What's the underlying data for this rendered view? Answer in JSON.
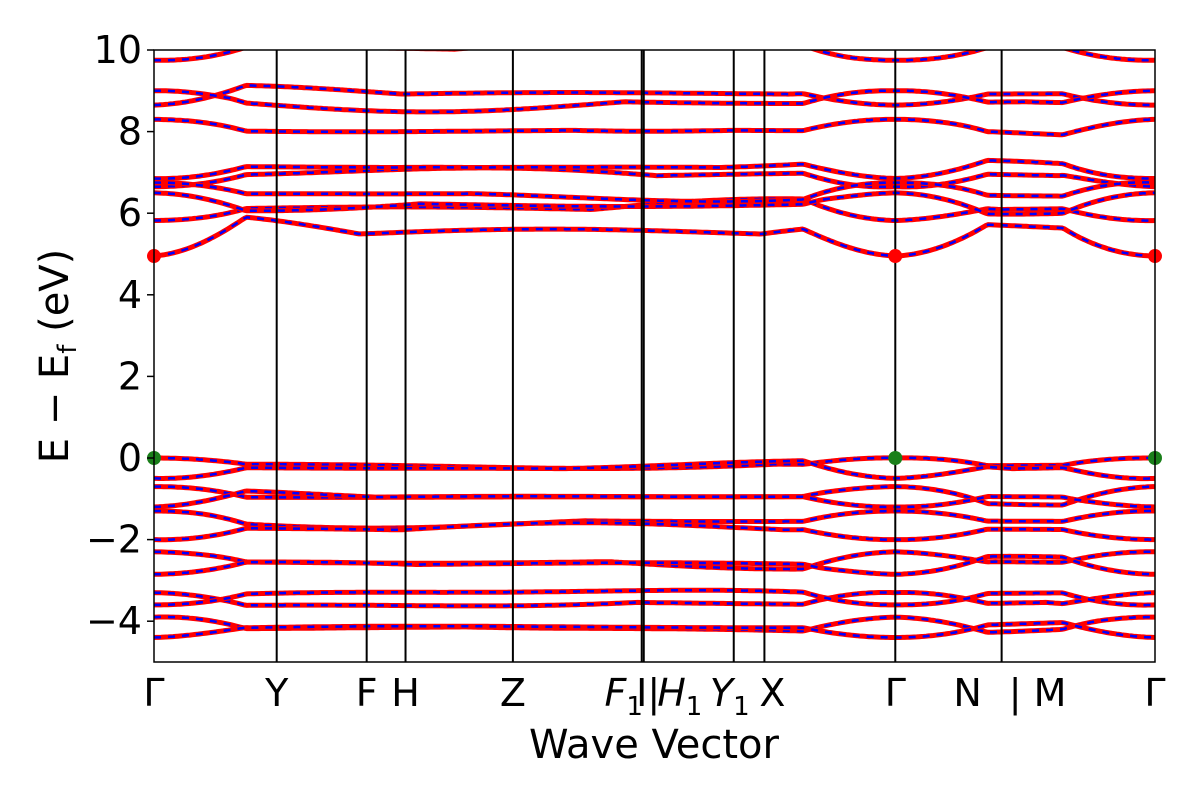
{
  "chart_data": {
    "type": "line",
    "ylabel": "E − E",
    "ylabel_sub": "f",
    "ylabel_unit": "(eV)",
    "xlabel": "Wave Vector",
    "ylim": [
      -5,
      10
    ],
    "yticks": [
      10,
      8,
      6,
      4,
      2,
      0,
      -2,
      -4
    ],
    "ytick_labels": [
      "10",
      "8",
      "6",
      "4",
      "2",
      "0",
      "−2",
      "−4"
    ],
    "path_segments": [
      {
        "from": "Γ",
        "to": "Y",
        "length": 1.2
      },
      {
        "from": "Y",
        "to": "F",
        "length": 0.88
      },
      {
        "from": "F",
        "to": "H",
        "length": 0.38
      },
      {
        "from": "H",
        "to": "Z",
        "length": 1.05
      },
      {
        "from": "Z",
        "to": "F1",
        "length": 1.26
      },
      {
        "from": "F1",
        "to": "I",
        "length": 0.02
      },
      {
        "from": "I|H1",
        "to": "Y1",
        "length": 0.88
      },
      {
        "from": "Y1",
        "to": "X",
        "length": 0.3
      },
      {
        "from": "X",
        "to": "Γ",
        "length": 1.28
      },
      {
        "from": "Γ",
        "to": "N",
        "length": 1.04
      },
      {
        "from": "N|M",
        "to": "Γ",
        "length": 1.5
      }
    ],
    "kpoint_labels": [
      {
        "main": "Γ",
        "sub": "",
        "italic": false
      },
      {
        "main": "Y",
        "sub": "",
        "italic": false
      },
      {
        "main": "F",
        "sub": "",
        "italic": false
      },
      {
        "main": "H",
        "sub": "",
        "italic": false
      },
      {
        "main": "Z",
        "sub": "",
        "italic": false
      },
      {
        "main": "F",
        "sub": "1",
        "italic": true
      },
      {
        "main": "I",
        "sub": "",
        "italic": false
      },
      {
        "main": "| ",
        "sub": "",
        "italic": false
      },
      {
        "main": "H",
        "sub": "1",
        "italic": true
      },
      {
        "main": "Y",
        "sub": "1",
        "italic": true
      },
      {
        "main": "X",
        "sub": "",
        "italic": false
      },
      {
        "main": "Γ",
        "sub": "",
        "italic": false
      },
      {
        "main": "N",
        "sub": "",
        "italic": false
      },
      {
        "main": "| M",
        "sub": "",
        "italic": false
      },
      {
        "main": "Γ",
        "sub": "",
        "italic": false
      }
    ],
    "series": [
      {
        "color": "#ff0000",
        "style": "solid"
      },
      {
        "color": "#0000ff",
        "style": "dashed"
      }
    ],
    "valence_band_maximum_eV": 0.0,
    "conduction_band_minimum_eV": 4.95,
    "band_edge_markers": [
      {
        "kpoint": "Γ",
        "energy": 4.95,
        "color": "#ff0000"
      },
      {
        "kpoint": "Γ",
        "energy": 0.0,
        "color": "#1a7f1a"
      }
    ],
    "conduction_bands_at_gamma": [
      4.95,
      5.82,
      6.5,
      6.65,
      6.75,
      6.85,
      8.3,
      8.65,
      9.0,
      9.75
    ],
    "valence_bands_at_gamma": [
      0.0,
      -0.5,
      -0.7,
      -1.2,
      -1.3,
      -2.0,
      -2.3,
      -2.85,
      -3.3,
      -3.6,
      -3.9,
      -4.4
    ]
  }
}
